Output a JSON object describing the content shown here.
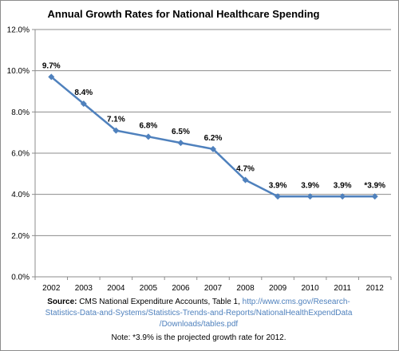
{
  "chart_data": {
    "type": "line",
    "title": "Annual Growth Rates for National Healthcare Spending",
    "categories": [
      "2002",
      "2003",
      "2004",
      "2005",
      "2006",
      "2007",
      "2008",
      "2009",
      "2010",
      "2011",
      "2012"
    ],
    "series": [
      {
        "values": [
          9.7,
          8.4,
          7.1,
          6.8,
          6.5,
          6.2,
          4.7,
          3.9,
          3.9,
          3.9,
          3.9
        ],
        "color": "#4f81bd"
      }
    ],
    "data_labels": [
      "9.7%",
      "8.4%",
      "7.1%",
      "6.8%",
      "6.5%",
      "6.2%",
      "4.7%",
      "3.9%",
      "3.9%",
      "3.9%",
      "*3.9%"
    ],
    "yticks": [
      "0.0%",
      "2.0%",
      "4.0%",
      "6.0%",
      "8.0%",
      "10.0%",
      "12.0%"
    ],
    "ylim": [
      0,
      12
    ],
    "grid": true,
    "legend": "none",
    "marker": "diamond"
  },
  "source": {
    "label": "Source:",
    "text": "CMS National Expenditure Accounts, Table 1,",
    "link_line1": "http://www.cms.gov/Research-",
    "link_line2": "Statistics-Data-and-Systems/Statistics-Trends-and-Reports/NationalHealthExpendData",
    "link_line3": "/Downloads/tables.pdf"
  },
  "note": "Note:  *3.9% is the projected growth rate for 2012."
}
